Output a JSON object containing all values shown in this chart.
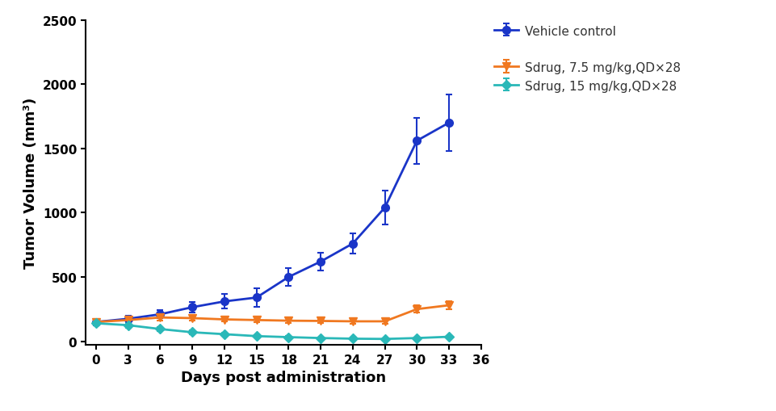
{
  "days": [
    0,
    3,
    6,
    9,
    12,
    15,
    18,
    21,
    24,
    27,
    30,
    33
  ],
  "vehicle_control": {
    "y": [
      150,
      175,
      210,
      265,
      310,
      340,
      500,
      620,
      760,
      1040,
      1560,
      1700
    ],
    "yerr": [
      20,
      25,
      30,
      40,
      55,
      70,
      70,
      70,
      80,
      130,
      180,
      220
    ],
    "color": "#1a35c8",
    "label": "Vehicle control",
    "marker": "o"
  },
  "sdrug_7_5": {
    "y": [
      150,
      165,
      185,
      180,
      170,
      165,
      160,
      158,
      155,
      155,
      250,
      280
    ],
    "yerr": [
      20,
      20,
      22,
      18,
      18,
      18,
      18,
      18,
      18,
      18,
      28,
      32
    ],
    "color": "#f07820",
    "label": "Sdrug, 7.5 mg/kg,QD×28",
    "marker": "v"
  },
  "sdrug_15": {
    "y": [
      140,
      125,
      95,
      70,
      55,
      40,
      32,
      25,
      20,
      18,
      25,
      35
    ],
    "yerr": [
      18,
      18,
      18,
      14,
      10,
      8,
      7,
      7,
      5,
      5,
      7,
      8
    ],
    "color": "#2ab8b8",
    "label": "Sdrug, 15 mg/kg,QD×28",
    "marker": "D"
  },
  "xlim": [
    -1,
    36
  ],
  "ylim": [
    -30,
    2500
  ],
  "xticks": [
    0,
    3,
    6,
    9,
    12,
    15,
    18,
    21,
    24,
    27,
    30,
    33,
    36
  ],
  "yticks": [
    0,
    500,
    1000,
    1500,
    2000,
    2500
  ],
  "xlabel": "Days post administration",
  "ylabel": "Tumor Volume (mm³)",
  "axis_fontsize": 13,
  "tick_fontsize": 11,
  "legend_fontsize": 11,
  "background_color": "#ffffff"
}
